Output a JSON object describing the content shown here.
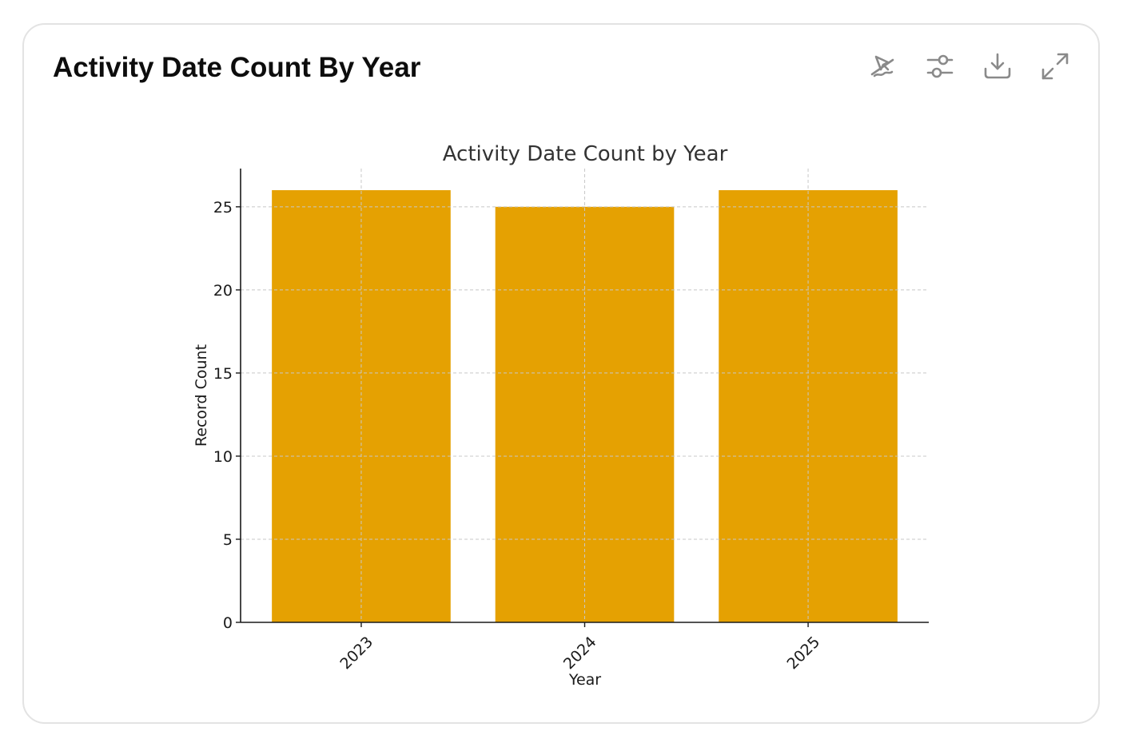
{
  "card": {
    "title": "Activity Date Count By Year",
    "toolbar": {
      "icons": [
        "interactivity-off-icon",
        "settings-sliders-icon",
        "download-icon",
        "expand-icon"
      ]
    }
  },
  "chart_data": {
    "type": "bar",
    "title": "Activity Date Count by Year",
    "xlabel": "Year",
    "ylabel": "Record Count",
    "categories": [
      "2023",
      "2024",
      "2025"
    ],
    "values": [
      26,
      25,
      26
    ],
    "ylim": [
      0,
      27.3
    ],
    "yticks": [
      0,
      5,
      10,
      15,
      20,
      25
    ],
    "grid": true,
    "bar_color": "#e5a102",
    "x_tick_rotation_deg": 45
  }
}
